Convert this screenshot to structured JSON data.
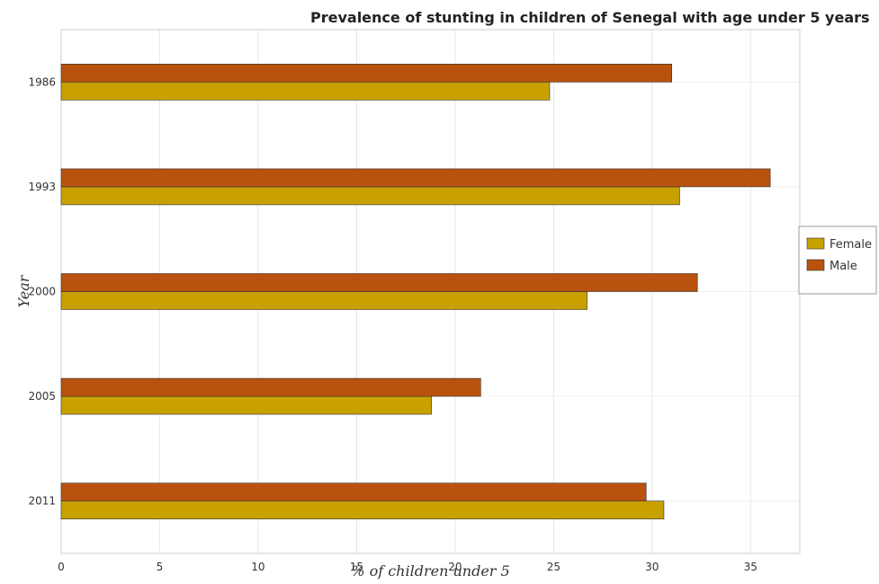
{
  "chart_data": {
    "type": "bar",
    "orientation": "horizontal",
    "title": "Prevalence of stunting in children of Senegal with age under 5 years",
    "xlabel": "% of children under 5",
    "ylabel": "Year",
    "categories": [
      "1986",
      "1993",
      "2000",
      "2005",
      "2011"
    ],
    "series": [
      {
        "name": "Female",
        "values": [
          24.8,
          31.4,
          26.7,
          18.8,
          30.6
        ],
        "color": "#C8A000"
      },
      {
        "name": "Male",
        "values": [
          31.0,
          36.0,
          32.3,
          21.3,
          29.7
        ],
        "color": "#B8520E"
      }
    ],
    "xlim": [
      0,
      37.5
    ],
    "xticks": [
      0,
      5,
      10,
      15,
      20,
      25,
      30,
      35
    ],
    "grid": true,
    "legend": "right"
  }
}
